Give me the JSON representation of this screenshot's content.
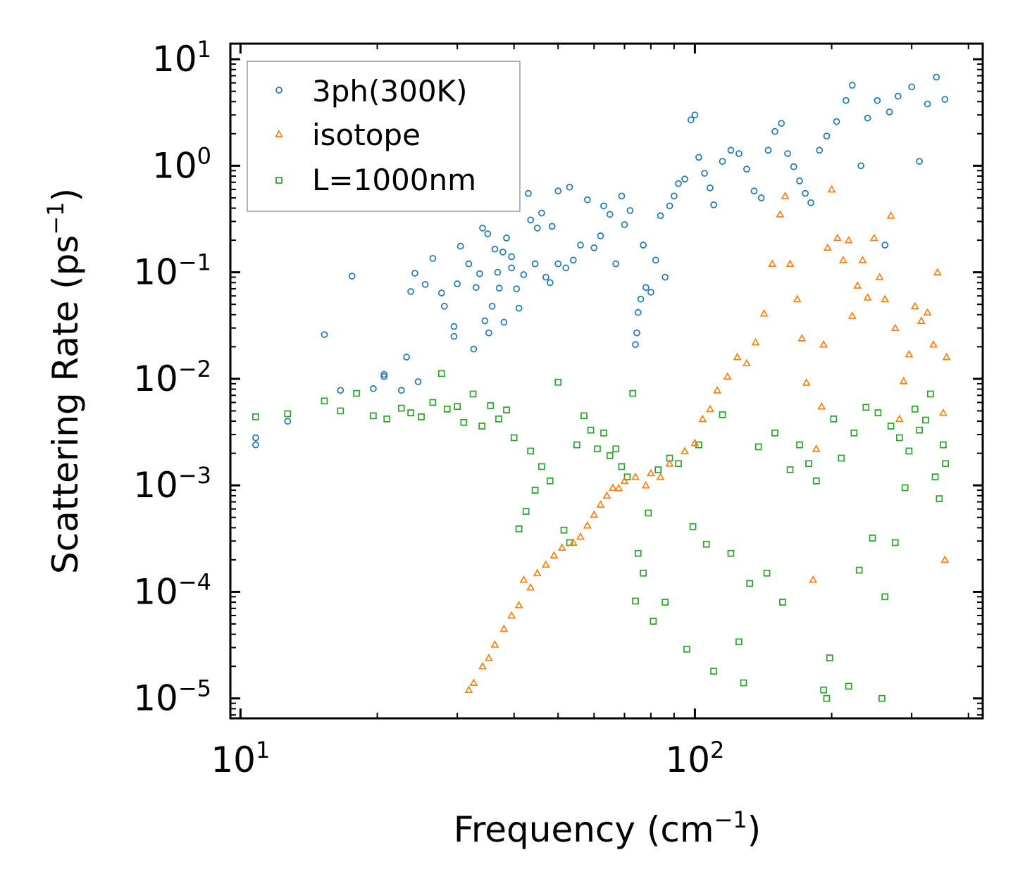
{
  "chart_data": {
    "type": "scatter",
    "title": "",
    "xlabel": "Frequency (cm",
    "xlabel_sup": "−1",
    "xlabel_end": ")",
    "ylabel": "Scattering Rate (ps",
    "ylabel_sup": "−1",
    "ylabel_end": ")",
    "xscale": "log",
    "yscale": "log",
    "xlim": [
      9.5,
      430
    ],
    "ylim": [
      6.5e-06,
      14
    ],
    "x_ticks": [
      {
        "base": "10",
        "exp": "1",
        "value": 10
      },
      {
        "base": "10",
        "exp": "2",
        "value": 100
      }
    ],
    "y_ticks": [
      {
        "base": "10",
        "exp": "1",
        "value": 10
      },
      {
        "base": "10",
        "exp": "0",
        "value": 1
      },
      {
        "base": "10",
        "exp": "−1",
        "value": 0.1
      },
      {
        "base": "10",
        "exp": "−2",
        "value": 0.01
      },
      {
        "base": "10",
        "exp": "−3",
        "value": 0.001
      },
      {
        "base": "10",
        "exp": "−4",
        "value": 0.0001
      },
      {
        "base": "10",
        "exp": "−5",
        "value": 1e-05
      }
    ],
    "legend_position": "top-left",
    "series": [
      {
        "name": "3ph(300K)",
        "marker": "circle",
        "color": "#1f77b4",
        "points": [
          [
            10.8,
            0.0024
          ],
          [
            10.8,
            0.0028
          ],
          [
            12.7,
            0.004
          ],
          [
            15.3,
            0.026
          ],
          [
            17.6,
            0.092
          ],
          [
            16.6,
            0.0078
          ],
          [
            19.6,
            0.0081
          ],
          [
            20.7,
            0.011
          ],
          [
            20.7,
            0.0105
          ],
          [
            22.6,
            0.0078
          ],
          [
            23.2,
            0.016
          ],
          [
            24.2,
            0.098
          ],
          [
            24.6,
            0.0094
          ],
          [
            23.7,
            0.066
          ],
          [
            26.5,
            0.135
          ],
          [
            25.5,
            0.077
          ],
          [
            27.7,
            0.064
          ],
          [
            28.1,
            0.048
          ],
          [
            29.5,
            0.031
          ],
          [
            29.5,
            0.025
          ],
          [
            30.0,
            0.078
          ],
          [
            30.5,
            0.176
          ],
          [
            31.8,
            0.12
          ],
          [
            32.6,
            0.019
          ],
          [
            33.0,
            0.072
          ],
          [
            33.6,
            0.097
          ],
          [
            34.1,
            0.26
          ],
          [
            34.5,
            0.035
          ],
          [
            35.2,
            0.027
          ],
          [
            35.0,
            0.23
          ],
          [
            35.8,
            0.048
          ],
          [
            36.3,
            0.165
          ],
          [
            36.8,
            0.1
          ],
          [
            37.1,
            0.071
          ],
          [
            37.8,
            0.155
          ],
          [
            38.0,
            0.034
          ],
          [
            38.5,
            0.21
          ],
          [
            39.5,
            0.11
          ],
          [
            39.5,
            0.14
          ],
          [
            40.5,
            0.07
          ],
          [
            41.0,
            0.046
          ],
          [
            42.0,
            0.095
          ],
          [
            43.0,
            0.55
          ],
          [
            43.5,
            0.31
          ],
          [
            44.5,
            0.12
          ],
          [
            45.0,
            0.26
          ],
          [
            46.0,
            0.36
          ],
          [
            47.0,
            0.09
          ],
          [
            48.0,
            0.08
          ],
          [
            48.5,
            0.27
          ],
          [
            50.0,
            0.12
          ],
          [
            50.0,
            0.58
          ],
          [
            52.0,
            0.11
          ],
          [
            53.0,
            0.63
          ],
          [
            54.0,
            0.13
          ],
          [
            56.0,
            0.18
          ],
          [
            58.0,
            0.48
          ],
          [
            60.0,
            0.17
          ],
          [
            62.0,
            0.22
          ],
          [
            63.0,
            0.42
          ],
          [
            65.0,
            0.35
          ],
          [
            67.0,
            0.12
          ],
          [
            69.0,
            0.52
          ],
          [
            70.0,
            0.28
          ],
          [
            72.0,
            0.38
          ],
          [
            74.0,
            0.021
          ],
          [
            74.5,
            0.027
          ],
          [
            75.0,
            0.042
          ],
          [
            76.0,
            0.056
          ],
          [
            77.0,
            0.18
          ],
          [
            78.0,
            0.072
          ],
          [
            80.0,
            0.065
          ],
          [
            82.0,
            0.13
          ],
          [
            84.0,
            0.34
          ],
          [
            86.0,
            0.09
          ],
          [
            88.0,
            0.42
          ],
          [
            90.0,
            0.52
          ],
          [
            92.0,
            0.68
          ],
          [
            95.0,
            0.75
          ],
          [
            98.0,
            2.7
          ],
          [
            100.0,
            3.0
          ],
          [
            102.0,
            1.2
          ],
          [
            105.0,
            0.85
          ],
          [
            108.0,
            0.62
          ],
          [
            110.0,
            0.43
          ],
          [
            115.0,
            1.1
          ],
          [
            120.0,
            1.4
          ],
          [
            125.0,
            1.3
          ],
          [
            130.0,
            0.93
          ],
          [
            135.0,
            0.58
          ],
          [
            140.0,
            0.5
          ],
          [
            145.0,
            1.4
          ],
          [
            150.0,
            2.1
          ],
          [
            155.0,
            2.5
          ],
          [
            160.0,
            1.3
          ],
          [
            165.0,
            0.98
          ],
          [
            170.0,
            0.72
          ],
          [
            175.0,
            0.55
          ],
          [
            180.0,
            0.45
          ],
          [
            188.0,
            1.4
          ],
          [
            195.0,
            1.9
          ],
          [
            205.0,
            2.6
          ],
          [
            215.0,
            4.1
          ],
          [
            222.0,
            5.7
          ],
          [
            232.0,
            1.0
          ],
          [
            240.0,
            2.8
          ],
          [
            252.0,
            4.1
          ],
          [
            262.0,
            0.18
          ],
          [
            268.0,
            3.2
          ],
          [
            280.0,
            4.5
          ],
          [
            300.0,
            5.5
          ],
          [
            312.0,
            1.1
          ],
          [
            325.0,
            3.8
          ],
          [
            340.0,
            6.8
          ],
          [
            355.0,
            4.2
          ]
        ]
      },
      {
        "name": "isotope",
        "marker": "triangle",
        "color": "#ff7f0e",
        "points": [
          [
            31.8,
            1.2e-05
          ],
          [
            32.6,
            1.4e-05
          ],
          [
            34.1,
            2e-05
          ],
          [
            35.2,
            2.4e-05
          ],
          [
            36.3,
            3.2e-05
          ],
          [
            38.0,
            4.5e-05
          ],
          [
            39.5,
            6e-05
          ],
          [
            41.0,
            7.5e-05
          ],
          [
            42.0,
            0.00013
          ],
          [
            43.5,
            0.00011
          ],
          [
            45.0,
            0.00015
          ],
          [
            47.0,
            0.00018
          ],
          [
            49.0,
            0.00022
          ],
          [
            51.0,
            0.00026
          ],
          [
            54.0,
            0.00029
          ],
          [
            56.0,
            0.00033
          ],
          [
            58.0,
            0.00042
          ],
          [
            60.0,
            0.00053
          ],
          [
            62.0,
            0.00066
          ],
          [
            64.0,
            0.0008
          ],
          [
            66.0,
            0.00095
          ],
          [
            68.0,
            0.00094
          ],
          [
            70.0,
            0.0011
          ],
          [
            74.0,
            0.0012
          ],
          [
            78.0,
            0.001
          ],
          [
            80.0,
            0.0013
          ],
          [
            84.0,
            0.0012
          ],
          [
            88.0,
            0.0016
          ],
          [
            95.0,
            0.0021
          ],
          [
            100.0,
            0.0025
          ],
          [
            104.0,
            0.0042
          ],
          [
            108.0,
            0.0052
          ],
          [
            112.0,
            0.0078
          ],
          [
            118.0,
            0.0105
          ],
          [
            124.0,
            0.016
          ],
          [
            130.0,
            0.014
          ],
          [
            136.0,
            0.022
          ],
          [
            142.0,
            0.041
          ],
          [
            148.0,
            0.12
          ],
          [
            154.0,
            0.35
          ],
          [
            158.0,
            0.52
          ],
          [
            162.0,
            0.12
          ],
          [
            168.0,
            0.056
          ],
          [
            172.0,
            0.024
          ],
          [
            176.0,
            0.0092
          ],
          [
            182.0,
            0.00013
          ],
          [
            185.0,
            0.0022
          ],
          [
            190.0,
            0.0055
          ],
          [
            192.0,
            0.021
          ],
          [
            196.0,
            0.17
          ],
          [
            200.0,
            0.6
          ],
          [
            206.0,
            0.21
          ],
          [
            212.0,
            0.13
          ],
          [
            218.0,
            0.2
          ],
          [
            222.0,
            0.039
          ],
          [
            228.0,
            0.075
          ],
          [
            234.0,
            0.13
          ],
          [
            240.0,
            0.058
          ],
          [
            248.0,
            0.21
          ],
          [
            255.0,
            0.09
          ],
          [
            262.0,
            0.056
          ],
          [
            270.0,
            0.34
          ],
          [
            276.0,
            0.03
          ],
          [
            282.0,
            0.0042
          ],
          [
            288.0,
            0.0095
          ],
          [
            296.0,
            0.017
          ],
          [
            305.0,
            0.048
          ],
          [
            315.0,
            0.035
          ],
          [
            325.0,
            0.042
          ],
          [
            335.0,
            0.021
          ],
          [
            342.0,
            0.1
          ],
          [
            352.0,
            0.0048
          ],
          [
            355.0,
            0.0002
          ],
          [
            358.0,
            0.016
          ]
        ]
      },
      {
        "name": "L=1000nm",
        "marker": "square",
        "color": "#2ca02c",
        "points": [
          [
            10.8,
            0.0044
          ],
          [
            12.7,
            0.0047
          ],
          [
            15.3,
            0.0062
          ],
          [
            16.6,
            0.005
          ],
          [
            18.0,
            0.0073
          ],
          [
            19.6,
            0.0045
          ],
          [
            21.0,
            0.0042
          ],
          [
            22.6,
            0.0053
          ],
          [
            23.7,
            0.0048
          ],
          [
            25.0,
            0.0044
          ],
          [
            26.5,
            0.006
          ],
          [
            27.7,
            0.0112
          ],
          [
            28.5,
            0.0052
          ],
          [
            30.0,
            0.0055
          ],
          [
            31.0,
            0.0039
          ],
          [
            32.5,
            0.0072
          ],
          [
            34.0,
            0.0036
          ],
          [
            35.5,
            0.0056
          ],
          [
            37.0,
            0.0042
          ],
          [
            38.5,
            0.0051
          ],
          [
            40.0,
            0.0028
          ],
          [
            41.0,
            0.00039
          ],
          [
            42.5,
            0.00057
          ],
          [
            43.5,
            0.0021
          ],
          [
            44.5,
            0.0009
          ],
          [
            46.0,
            0.0015
          ],
          [
            48.0,
            0.0011
          ],
          [
            50.0,
            0.0093
          ],
          [
            51.5,
            0.00038
          ],
          [
            53.0,
            0.00029
          ],
          [
            55.0,
            0.0024
          ],
          [
            57.0,
            0.0045
          ],
          [
            59.0,
            0.0033
          ],
          [
            61.0,
            0.0022
          ],
          [
            63.0,
            0.0031
          ],
          [
            65.0,
            0.0019
          ],
          [
            67.0,
            0.0022
          ],
          [
            69.0,
            0.0015
          ],
          [
            71.0,
            0.0012
          ],
          [
            73.0,
            0.0073
          ],
          [
            74.0,
            8.2e-05
          ],
          [
            75.0,
            0.00023
          ],
          [
            77.0,
            0.00015
          ],
          [
            79.0,
            0.00055
          ],
          [
            81.0,
            5.3e-05
          ],
          [
            83.0,
            0.0014
          ],
          [
            86.0,
            8e-05
          ],
          [
            88.0,
            0.0018
          ],
          [
            92.0,
            0.0016
          ],
          [
            96.0,
            2.9e-05
          ],
          [
            99.0,
            0.00041
          ],
          [
            102.0,
            0.0024
          ],
          [
            106.0,
            0.00028
          ],
          [
            110.0,
            1.8e-05
          ],
          [
            115.0,
            0.0046
          ],
          [
            120.0,
            0.00023
          ],
          [
            125.0,
            3.4e-05
          ],
          [
            128.0,
            1.4e-05
          ],
          [
            132.0,
            0.00012
          ],
          [
            138.0,
            0.0023
          ],
          [
            144.0,
            0.00015
          ],
          [
            150.0,
            0.0031
          ],
          [
            156.0,
            8e-05
          ],
          [
            162.0,
            0.0014
          ],
          [
            170.0,
            0.0024
          ],
          [
            178.0,
            0.0016
          ],
          [
            185.0,
            0.0011
          ],
          [
            192.0,
            1.2e-05
          ],
          [
            195.0,
            1e-05
          ],
          [
            198.0,
            2.4e-05
          ],
          [
            202.0,
            0.0042
          ],
          [
            210.0,
            0.0018
          ],
          [
            218.0,
            1.3e-05
          ],
          [
            224.0,
            0.0031
          ],
          [
            230.0,
            0.00016
          ],
          [
            238.0,
            0.0054
          ],
          [
            246.0,
            0.00032
          ],
          [
            253.0,
            0.0048
          ],
          [
            258.0,
            1e-05
          ],
          [
            262.0,
            9e-05
          ],
          [
            270.0,
            0.0036
          ],
          [
            276.0,
            0.00029
          ],
          [
            282.0,
            0.0028
          ],
          [
            290.0,
            0.00095
          ],
          [
            296.0,
            0.0021
          ],
          [
            305.0,
            0.0052
          ],
          [
            312.0,
            0.0033
          ],
          [
            322.0,
            0.0041
          ],
          [
            330.0,
            0.0072
          ],
          [
            338.0,
            0.0012
          ],
          [
            345.0,
            0.00075
          ],
          [
            352.0,
            0.0024
          ],
          [
            356.0,
            0.0016
          ]
        ]
      }
    ]
  }
}
